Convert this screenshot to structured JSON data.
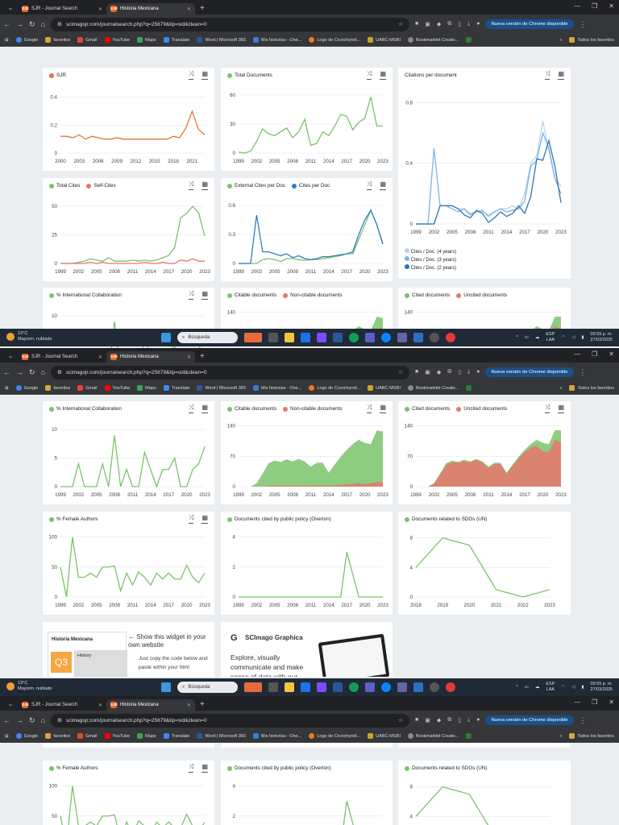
{
  "browser": {
    "tabs": [
      {
        "label": "SJR - Journal Search",
        "icon": "SJR"
      },
      {
        "label": "Historia Mexicana",
        "icon": "SJR"
      }
    ],
    "url": "scimagojr.com/journalsearch.php?q=25679&tip=sid&clean=0",
    "update_button": "Nueva versión de Chrome disponible",
    "bookmarks": [
      "Google",
      "favoritos",
      "Gmail",
      "YouTube",
      "Maps",
      "Translate",
      "Word | Microsoft 365",
      "Mis historias - One...",
      "Logo de Crunchyroll...",
      "UABC-MSRI",
      "Bookmarklet Creato..."
    ],
    "all_bookmarks": "Todos los favoritos",
    "bookmark_overflow": "»"
  },
  "taskbar": {
    "temperature": "13°C",
    "weather": "Mayorm. nublado",
    "search": "Búsqueda",
    "language": "ESP",
    "layout": "LAA",
    "time": "09:59 p. m.",
    "date": "27/03/2025"
  },
  "charts": {
    "sjr": {
      "title": "SJR",
      "color": "#e8743b"
    },
    "total_docs": {
      "title": "Total Documents",
      "color": "#7ac36a"
    },
    "cites_per_doc": {
      "title": "Citations per document"
    },
    "total_cites": {
      "legend": [
        "Total Cites",
        "Self-Cites"
      ],
      "colors": [
        "#7ac36a",
        "#e8766d"
      ]
    },
    "external_cites": {
      "legend": [
        "External Cites per Doc",
        "Cites per Doc"
      ],
      "colors": [
        "#7ac36a",
        "#2d7fc1"
      ]
    },
    "cites_legend": [
      "Cites / Doc. (4 years)",
      "Cites / Doc. (3 years)",
      "Cites / Doc. (2 years)"
    ],
    "cites_legend_colors": [
      "#b7d4ec",
      "#7fb3de",
      "#2f75b5"
    ],
    "intl": {
      "title": "% International Collaboration",
      "color": "#7ac36a"
    },
    "citable": {
      "legend": [
        "Citable documents",
        "Non-citable documents"
      ],
      "colors": [
        "#7ac36a",
        "#e8766d"
      ]
    },
    "cited": {
      "legend": [
        "Cited documents",
        "Uncited documents"
      ],
      "colors": [
        "#7ac36a",
        "#e8766d"
      ]
    },
    "female": {
      "title": "% Female Authors",
      "color": "#7ac36a"
    },
    "policy": {
      "title": "Documents cited by public policy (Overton)",
      "color": "#7ac36a"
    },
    "sdg": {
      "title": "Documents related to SDGs (UN)",
      "color": "#7ac36a"
    }
  },
  "promo": {
    "widget_journal": "Historia Mexicana",
    "quartile": "Q3",
    "widget_tab": "History",
    "widget_heading": "← Show this widget in your own website",
    "widget_text": "Just copy the code below and paste within your html",
    "graphica_title": "SCImago Graphica",
    "graphica_text": "Explore, visually communicate and make sense of data with our"
  },
  "chart_data": [
    {
      "type": "line",
      "title": "SJR",
      "x": [
        2000,
        2001,
        2002,
        2003,
        2004,
        2005,
        2006,
        2007,
        2008,
        2009,
        2010,
        2011,
        2012,
        2013,
        2014,
        2015,
        2016,
        2017,
        2018,
        2019,
        2020,
        2021,
        2022,
        2023
      ],
      "series": [
        {
          "name": "SJR",
          "values": [
            0.12,
            0.12,
            0.11,
            0.13,
            0.1,
            0.12,
            0.11,
            0.1,
            0.1,
            0.11,
            0.1,
            0.1,
            0.1,
            0.1,
            0.1,
            0.1,
            0.1,
            0.1,
            0.12,
            0.11,
            0.18,
            0.3,
            0.17,
            0.13
          ]
        }
      ],
      "xticks": [
        "2000",
        "2003",
        "2006",
        "2009",
        "2012",
        "2015",
        "2018",
        "2021"
      ],
      "yticks": [
        "0",
        "0.2",
        "0.4"
      ],
      "ylim": [
        0,
        0.45
      ]
    },
    {
      "type": "line",
      "title": "Total Documents",
      "x": [
        1999,
        2000,
        2001,
        2002,
        2003,
        2004,
        2005,
        2006,
        2007,
        2008,
        2009,
        2010,
        2011,
        2012,
        2013,
        2014,
        2015,
        2016,
        2017,
        2018,
        2019,
        2020,
        2021,
        2022,
        2023
      ],
      "series": [
        {
          "name": "Total Documents",
          "values": [
            1,
            0,
            2,
            12,
            25,
            20,
            18,
            22,
            26,
            16,
            22,
            35,
            8,
            10,
            22,
            18,
            28,
            40,
            38,
            24,
            32,
            36,
            58,
            28,
            28
          ]
        }
      ],
      "xticks": [
        "1999",
        "2002",
        "2005",
        "2008",
        "2011",
        "2014",
        "2017",
        "2020",
        "2023"
      ],
      "yticks": [
        "0",
        "30",
        "60"
      ],
      "ylim": [
        0,
        65
      ]
    },
    {
      "type": "line",
      "title": "Citations per document",
      "x": [
        1999,
        2000,
        2001,
        2002,
        2003,
        2004,
        2005,
        2006,
        2007,
        2008,
        2009,
        2010,
        2011,
        2012,
        2013,
        2014,
        2015,
        2016,
        2017,
        2018,
        2019,
        2020,
        2021,
        2022,
        2023
      ],
      "series": [
        {
          "name": "Cites / Doc. (4 years)",
          "values": [
            0,
            0,
            0,
            0,
            0.12,
            0.12,
            0.12,
            0.1,
            0.1,
            0.07,
            0.08,
            0.08,
            0.06,
            0.08,
            0.1,
            0.1,
            0.12,
            0.1,
            0.2,
            0.4,
            0.45,
            0.68,
            0.48,
            0.3,
            0.25
          ]
        },
        {
          "name": "Cites / Doc. (3 years)",
          "values": [
            0,
            0,
            0,
            0.5,
            0.12,
            0.12,
            0.1,
            0.08,
            0.1,
            0.06,
            0.08,
            0.09,
            0.05,
            0.08,
            0.1,
            0.08,
            0.09,
            0.1,
            0.15,
            0.38,
            0.42,
            0.6,
            0.5,
            0.3,
            0.2
          ]
        },
        {
          "name": "Cites / Doc. (2 years)",
          "values": [
            0,
            0,
            0,
            0,
            0.12,
            0.12,
            0.12,
            0.1,
            0.06,
            0.04,
            0.09,
            0.07,
            0.01,
            0.04,
            0.08,
            0.05,
            0.07,
            0.12,
            0.07,
            0.18,
            0.43,
            0.42,
            0.55,
            0.38,
            0.14
          ]
        }
      ],
      "xticks": [
        "1999",
        "2002",
        "2005",
        "2008",
        "2011",
        "2014",
        "2017",
        "2020",
        "2023"
      ],
      "yticks": [
        "0",
        "0.4",
        "0.8"
      ],
      "ylim": [
        0,
        0.85
      ]
    },
    {
      "type": "line",
      "title": "Total Cites",
      "x": [
        1999,
        2000,
        2001,
        2002,
        2003,
        2004,
        2005,
        2006,
        2007,
        2008,
        2009,
        2010,
        2011,
        2012,
        2013,
        2014,
        2015,
        2016,
        2017,
        2018,
        2019,
        2020,
        2021,
        2022,
        2023
      ],
      "series": [
        {
          "name": "Total Cites",
          "values": [
            0,
            0,
            0,
            1,
            2,
            4,
            3,
            2,
            5,
            2,
            2,
            2,
            3,
            2,
            3,
            2,
            3,
            5,
            7,
            14,
            40,
            44,
            50,
            44,
            24
          ]
        },
        {
          "name": "Self-Cites",
          "values": [
            0,
            0,
            0,
            0,
            0,
            1,
            0,
            1,
            0,
            0,
            0,
            0,
            0,
            0,
            1,
            0,
            0,
            1,
            0,
            0,
            3,
            2,
            4,
            2,
            2
          ]
        }
      ],
      "xticks": [
        "1999",
        "2002",
        "2005",
        "2008",
        "2011",
        "2014",
        "2017",
        "2020",
        "2023"
      ],
      "yticks": [
        "0",
        "25",
        "50"
      ],
      "ylim": [
        0,
        55
      ]
    },
    {
      "type": "line",
      "title": "External Cites per Doc",
      "x": [
        1999,
        2000,
        2001,
        2002,
        2003,
        2004,
        2005,
        2006,
        2007,
        2008,
        2009,
        2010,
        2011,
        2012,
        2013,
        2014,
        2015,
        2016,
        2017,
        2018,
        2019,
        2020,
        2021,
        2022,
        2023
      ],
      "series": [
        {
          "name": "External Cites per Doc",
          "values": [
            0,
            0,
            0,
            0,
            0.04,
            0.05,
            0.04,
            0.02,
            0.05,
            0.05,
            0.04,
            0.03,
            0.04,
            0.04,
            0.05,
            0.06,
            0.07,
            0.08,
            0.1,
            0.1,
            0.25,
            0.4,
            0.55,
            0.4,
            0.2
          ]
        },
        {
          "name": "Cites per Doc",
          "values": [
            0,
            0,
            0,
            0.5,
            0.12,
            0.12,
            0.1,
            0.08,
            0.1,
            0.06,
            0.08,
            0.05,
            0.04,
            0.05,
            0.07,
            0.07,
            0.08,
            0.09,
            0.1,
            0.12,
            0.3,
            0.45,
            0.55,
            0.4,
            0.2
          ]
        }
      ],
      "xticks": [
        "1999",
        "2002",
        "2005",
        "2008",
        "2011",
        "2014",
        "2017",
        "2020",
        "2023"
      ],
      "yticks": [
        "0",
        "0.3",
        "0.6"
      ],
      "ylim": [
        0,
        0.65
      ]
    },
    {
      "type": "line",
      "title": "% International Collaboration",
      "x": [
        1999,
        2000,
        2001,
        2002,
        2003,
        2004,
        2005,
        2006,
        2007,
        2008,
        2009,
        2010,
        2011,
        2012,
        2013,
        2014,
        2015,
        2016,
        2017,
        2018,
        2019,
        2020,
        2021,
        2022,
        2023
      ],
      "series": [
        {
          "name": "% International Collaboration",
          "values": [
            0,
            0,
            0,
            4,
            0,
            0,
            0,
            4,
            0,
            9,
            0,
            3,
            0,
            0,
            6,
            3,
            0,
            3,
            3,
            5,
            0,
            0,
            3,
            4,
            7
          ]
        }
      ],
      "xticks": [
        "1999",
        "2002",
        "2005",
        "2008",
        "2011",
        "2014",
        "2017",
        "2020",
        "2023"
      ],
      "yticks": [
        "0",
        "5",
        "10"
      ],
      "ylim": [
        0,
        11
      ]
    },
    {
      "type": "area",
      "title": "Citable documents",
      "x": [
        1999,
        2000,
        2001,
        2002,
        2003,
        2004,
        2005,
        2006,
        2007,
        2008,
        2009,
        2010,
        2011,
        2012,
        2013,
        2014,
        2015,
        2016,
        2017,
        2018,
        2019,
        2020,
        2021,
        2022,
        2023
      ],
      "series": [
        {
          "name": "Citable documents",
          "values": [
            0,
            0,
            0,
            8,
            30,
            52,
            58,
            55,
            60,
            56,
            62,
            56,
            44,
            52,
            52,
            30,
            48,
            65,
            80,
            92,
            100,
            95,
            90,
            120,
            115
          ]
        },
        {
          "name": "Non-citable documents",
          "values": [
            0,
            0,
            0,
            0,
            0,
            2,
            2,
            2,
            3,
            2,
            2,
            2,
            2,
            3,
            3,
            2,
            3,
            4,
            5,
            6,
            8,
            6,
            8,
            10,
            12
          ]
        }
      ],
      "xticks": [
        "1999",
        "2002",
        "2005",
        "2008",
        "2011",
        "2014",
        "2017",
        "2020",
        "2023"
      ],
      "yticks": [
        "0",
        "70",
        "140"
      ],
      "ylim": [
        0,
        145
      ]
    },
    {
      "type": "area",
      "title": "Cited documents",
      "x": [
        1999,
        2000,
        2001,
        2002,
        2003,
        2004,
        2005,
        2006,
        2007,
        2008,
        2009,
        2010,
        2011,
        2012,
        2013,
        2014,
        2015,
        2016,
        2017,
        2018,
        2019,
        2020,
        2021,
        2022,
        2023
      ],
      "series": [
        {
          "name": "Cited documents",
          "values": [
            0,
            0,
            0,
            1,
            2,
            4,
            3,
            2,
            3,
            3,
            2,
            2,
            3,
            2,
            3,
            2,
            3,
            4,
            5,
            8,
            14,
            20,
            18,
            22,
            28
          ]
        },
        {
          "name": "Uncited documents",
          "values": [
            0,
            0,
            0,
            7,
            28,
            50,
            57,
            55,
            59,
            55,
            62,
            56,
            43,
            53,
            52,
            30,
            48,
            65,
            80,
            90,
            94,
            81,
            80,
            108,
            102
          ]
        }
      ],
      "xticks": [
        "1999",
        "2002",
        "2005",
        "2008",
        "2011",
        "2014",
        "2017",
        "2020",
        "2023"
      ],
      "yticks": [
        "0",
        "70",
        "140"
      ],
      "ylim": [
        0,
        145
      ]
    },
    {
      "type": "line",
      "title": "% Female Authors",
      "x": [
        1999,
        2000,
        2001,
        2002,
        2003,
        2004,
        2005,
        2006,
        2007,
        2008,
        2009,
        2010,
        2011,
        2012,
        2013,
        2014,
        2015,
        2016,
        2017,
        2018,
        2019,
        2020,
        2021,
        2022,
        2023
      ],
      "series": [
        {
          "name": "% Female Authors",
          "values": [
            50,
            0,
            100,
            33,
            33,
            40,
            33,
            50,
            50,
            52,
            10,
            40,
            20,
            42,
            33,
            20,
            40,
            30,
            40,
            30,
            30,
            53,
            33,
            24,
            40
          ]
        }
      ],
      "xticks": [
        "1999",
        "2002",
        "2005",
        "2008",
        "2011",
        "2014",
        "2017",
        "2020",
        "2023"
      ],
      "yticks": [
        "0",
        "50",
        "100"
      ],
      "ylim": [
        0,
        105
      ]
    },
    {
      "type": "line",
      "title": "Documents cited by public policy (Overton)",
      "x": [
        1999,
        2000,
        2001,
        2002,
        2003,
        2004,
        2005,
        2006,
        2007,
        2008,
        2009,
        2010,
        2011,
        2012,
        2013,
        2014,
        2015,
        2016,
        2017,
        2018,
        2019,
        2020,
        2021,
        2022,
        2023
      ],
      "series": [
        {
          "name": "Documents cited by public policy (Overton)",
          "values": [
            0,
            0,
            0,
            0,
            0,
            0,
            0,
            0,
            0,
            0,
            0,
            0,
            0,
            0,
            0,
            0,
            0,
            0,
            3,
            1.5,
            0,
            0,
            0,
            0,
            0
          ]
        }
      ],
      "xticks": [
        "1999",
        "2002",
        "2005",
        "2008",
        "2011",
        "2014",
        "2017",
        "2020",
        "2023"
      ],
      "yticks": [
        "0",
        "2",
        "4"
      ],
      "ylim": [
        0,
        4.2
      ]
    },
    {
      "type": "line",
      "title": "Documents related to SDGs (UN)",
      "x": [
        2018,
        2019,
        2020,
        2021,
        2022,
        2023
      ],
      "series": [
        {
          "name": "Documents related to SDGs (UN)",
          "values": [
            4,
            8,
            7,
            1,
            0,
            1
          ]
        }
      ],
      "xticks": [
        "2018",
        "2019",
        "2020",
        "2021",
        "2022",
        "2023"
      ],
      "yticks": [
        "0",
        "4",
        "8"
      ],
      "ylim": [
        0,
        8.5
      ]
    }
  ]
}
